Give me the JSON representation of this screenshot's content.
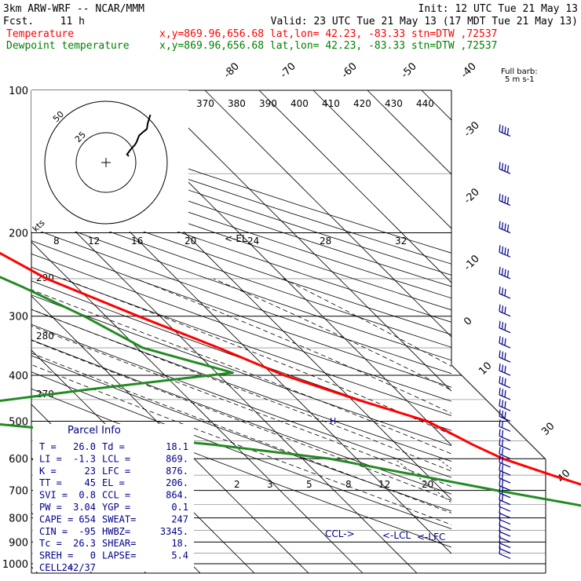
{
  "header": {
    "model": "3km ARW-WRF -- NCAR/MMM",
    "init": "Init: 12 UTC Tue 21 May 13",
    "fcst_label": "Fcst.",
    "fcst_value": "11 h",
    "valid": "Valid: 23 UTC Tue 21 May 13 (17 MDT Tue 21 May 13)",
    "lines": [
      {
        "label": "Temperature",
        "loc": "x,y=869.96,656.68   lat,lon= 42.23, -83.33  stn=DTW ,72537",
        "color": "#ff0000"
      },
      {
        "label": "Dewpoint temperature",
        "loc": "x,y=869.96,656.68   lat,lon= 42.23, -83.33  stn=DTW ,72537",
        "color": "#008000"
      }
    ]
  },
  "colors": {
    "temperature": "#ff0000",
    "dewpoint": "#228b22",
    "parcel_text": "#00008b",
    "grid": "#000000"
  },
  "chart_data": {
    "type": "line",
    "title": "Skew-T log-P sounding",
    "y_scale": "log",
    "ylim": [
      1000,
      100
    ],
    "pressure_labels": [
      100,
      200,
      300,
      400,
      500,
      600,
      700,
      800,
      900,
      1000
    ],
    "isotherm_labels": [
      "-80",
      "-70",
      "-60",
      "-50",
      "-40",
      "-30",
      "-20",
      "-10",
      "0",
      "10",
      "30",
      "40"
    ],
    "theta_labels": [
      "370",
      "380",
      "390",
      "400",
      "410",
      "420",
      "430",
      "440"
    ],
    "theta_left_labels": [
      "290",
      "280",
      "270"
    ],
    "mixing_ratio_labels": [
      "2",
      "3",
      "5",
      "8",
      "12",
      "20"
    ],
    "series": [
      {
        "name": "Temperature",
        "points": [
          [
            100,
            -47
          ],
          [
            140,
            -55
          ],
          [
            175,
            -63
          ],
          [
            200,
            -61
          ],
          [
            250,
            -54
          ],
          [
            300,
            -44
          ],
          [
            350,
            -35
          ],
          [
            400,
            -28
          ],
          [
            450,
            -19
          ],
          [
            500,
            -10
          ],
          [
            560,
            -6
          ],
          [
            600,
            -3
          ],
          [
            650,
            3
          ],
          [
            700,
            9
          ],
          [
            750,
            15
          ],
          [
            800,
            20
          ],
          [
            850,
            24
          ],
          [
            900,
            25.5
          ],
          [
            950,
            26
          ],
          [
            975,
            26
          ]
        ]
      },
      {
        "name": "Dewpoint temperature",
        "points": [
          [
            100,
            -64
          ],
          [
            125,
            -72
          ],
          [
            150,
            -70
          ],
          [
            200,
            -72
          ],
          [
            230,
            -66
          ],
          [
            260,
            -60
          ],
          [
            300,
            -54
          ],
          [
            350,
            -49
          ],
          [
            395,
            -37
          ],
          [
            430,
            -68
          ],
          [
            465,
            -94
          ],
          [
            500,
            -95
          ],
          [
            560,
            -54
          ],
          [
            600,
            -35
          ],
          [
            650,
            -22
          ],
          [
            700,
            -10
          ],
          [
            750,
            2
          ],
          [
            800,
            12
          ],
          [
            850,
            17
          ],
          [
            880,
            18
          ],
          [
            925,
            18.1
          ],
          [
            960,
            18
          ]
        ]
      }
    ],
    "hodograph": {
      "speed_rings": [
        "kts",
        "50",
        "25"
      ],
      "speed_scale": [
        "8",
        "12",
        "16",
        "20",
        "24",
        "28",
        "32"
      ],
      "points": [
        [
          15,
          34
        ],
        [
          12,
          25
        ],
        [
          11,
          19
        ],
        [
          7,
          16
        ],
        [
          2,
          12
        ],
        [
          -1,
          5
        ],
        [
          -3,
          2
        ],
        [
          -8,
          -3
        ],
        [
          -12,
          -8
        ],
        [
          -10,
          -10
        ]
      ]
    },
    "annotations": {
      "el": "<-EL",
      "lcl": "<-LCL",
      "lfc": "<-LFC",
      "ccl": "CCL->",
      "parcel_marker": "H"
    },
    "wind_barb_header": "Full barb:",
    "wind_barb_units": "5 m s-1"
  },
  "parcel_info": {
    "title": "Parcel Info",
    "rows": [
      [
        "T  =",
        "26.0",
        "Td =",
        "18.1"
      ],
      [
        "LI =",
        "-1.3",
        "LCL =",
        "869."
      ],
      [
        "K  =",
        "23",
        "LFC =",
        "876."
      ],
      [
        "TT =",
        "45",
        "EL =",
        "206."
      ],
      [
        "SVI =",
        "0.8",
        "CCL =",
        "864."
      ],
      [
        "PW =",
        "3.04",
        "YGP =",
        "0.1"
      ],
      [
        "CAPE =",
        "654",
        "SWEAT=",
        "247"
      ],
      [
        "CIN =",
        "-95",
        "HWBZ=",
        "3345."
      ],
      [
        "Tc =",
        "26.3",
        "SHEAR=",
        "18."
      ],
      [
        "SREH =",
        "0",
        "LAPSE=",
        "5.4"
      ],
      [
        "CELL =",
        "242/37",
        "",
        ""
      ]
    ]
  }
}
